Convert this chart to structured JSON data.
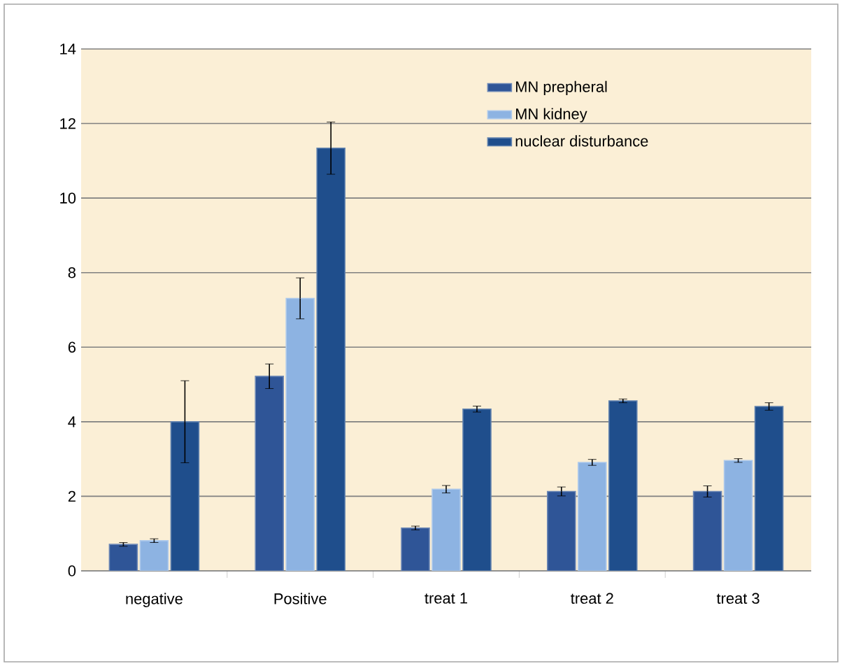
{
  "chart_data": {
    "type": "bar",
    "categories": [
      "negative",
      "Positive",
      "treat 1",
      "treat  2",
      "treat 3"
    ],
    "series": [
      {
        "name": "MN prepheral",
        "color": "#2f5597",
        "values": [
          0.71,
          5.22,
          1.15,
          2.13,
          2.13
        ],
        "errors": [
          0.05,
          0.33,
          0.05,
          0.12,
          0.15
        ]
      },
      {
        "name": "MN kidney",
        "color": "#8db3e2",
        "values": [
          0.81,
          7.31,
          2.19,
          2.91,
          2.96
        ],
        "errors": [
          0.05,
          0.55,
          0.1,
          0.08,
          0.05
        ]
      },
      {
        "name": "nuclear disturbance",
        "color": "#1f4e8c",
        "values": [
          4.0,
          11.34,
          4.34,
          4.56,
          4.41
        ],
        "errors": [
          1.1,
          0.7,
          0.08,
          0.05,
          0.1
        ]
      }
    ],
    "ylim": [
      0,
      14
    ],
    "yticks": [
      0,
      2,
      4,
      6,
      8,
      10,
      12,
      14
    ],
    "grid": "y",
    "legend": "top right"
  }
}
